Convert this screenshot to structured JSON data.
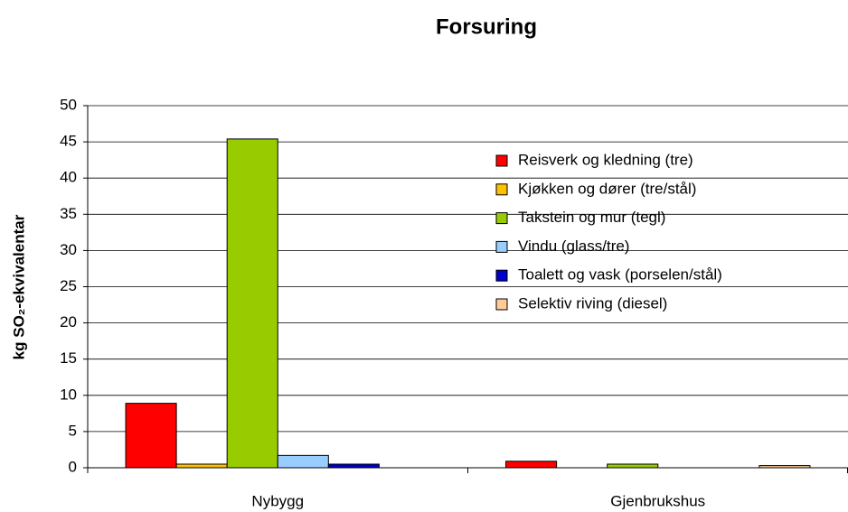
{
  "chart_data": {
    "type": "bar",
    "title": "Forsuring",
    "y_label": "kg SO₂-ekvivalentar",
    "categories": [
      "Nybygg",
      "Gjenbrukshus"
    ],
    "series": [
      {
        "name": "Reisverk og kledning (tre)",
        "color": "#ff0000",
        "values": [
          8.9,
          0.9
        ]
      },
      {
        "name": "Kjøkken og dører (tre/stål)",
        "color": "#ffc000",
        "values": [
          0.5,
          0
        ]
      },
      {
        "name": "Takstein og mur (tegl)",
        "color": "#99cc00",
        "values": [
          45.4,
          0.5
        ]
      },
      {
        "name": "Vindu (glass/tre)",
        "color": "#99ccff",
        "values": [
          1.7,
          0
        ]
      },
      {
        "name": "Toalett og vask (porselen/stål)",
        "color": "#0000cc",
        "values": [
          0.5,
          0
        ]
      },
      {
        "name": "Selektiv riving (diesel)",
        "color": "#ffcc99",
        "values": [
          0,
          0.3
        ]
      }
    ],
    "ylim": [
      0,
      50
    ],
    "yticks": [
      0,
      5,
      10,
      15,
      20,
      25,
      30,
      35,
      40,
      45,
      50
    ],
    "grid": true,
    "legend": "upper right"
  }
}
